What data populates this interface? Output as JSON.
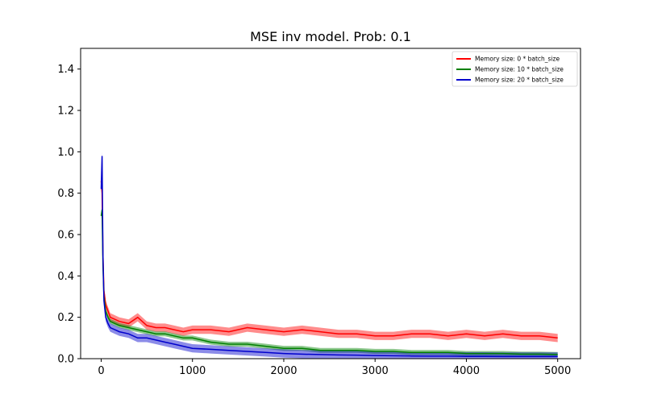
{
  "chart_data": {
    "type": "line",
    "title": "MSE inv model. Prob: 0.1",
    "xlabel": "",
    "ylabel": "",
    "xlim": [
      -225,
      5250
    ],
    "ylim": [
      0,
      1.5
    ],
    "x_ticks": [
      0,
      1000,
      2000,
      3000,
      4000,
      5000
    ],
    "x_tick_labels": [
      "0",
      "1000",
      "2000",
      "3000",
      "4000",
      "5000"
    ],
    "y_ticks": [
      0.0,
      0.2,
      0.4,
      0.6,
      0.8,
      1.0,
      1.2,
      1.4
    ],
    "y_tick_labels": [
      "0.0",
      "0.2",
      "0.4",
      "0.6",
      "0.8",
      "1.0",
      "1.2",
      "1.4"
    ],
    "grid": false,
    "legend_position": "top-right",
    "series": [
      {
        "name": "Memory size: 0 * batch_size",
        "color": "#ff0000",
        "x": [
          0,
          10,
          20,
          30,
          50,
          75,
          100,
          150,
          200,
          300,
          400,
          500,
          600,
          700,
          800,
          900,
          1000,
          1200,
          1400,
          1600,
          1800,
          2000,
          2200,
          2400,
          2600,
          2800,
          3000,
          3200,
          3400,
          3600,
          3800,
          4000,
          4200,
          4400,
          4600,
          4800,
          5000
        ],
        "y": [
          0.86,
          0.8,
          0.5,
          0.33,
          0.26,
          0.23,
          0.2,
          0.19,
          0.18,
          0.17,
          0.2,
          0.16,
          0.15,
          0.15,
          0.14,
          0.13,
          0.14,
          0.14,
          0.13,
          0.15,
          0.14,
          0.13,
          0.14,
          0.13,
          0.12,
          0.12,
          0.11,
          0.11,
          0.12,
          0.12,
          0.11,
          0.12,
          0.11,
          0.12,
          0.11,
          0.11,
          0.1
        ],
        "band": 0.02
      },
      {
        "name": "Memory size: 10 * batch_size",
        "color": "#008000",
        "x": [
          0,
          10,
          20,
          30,
          50,
          75,
          100,
          150,
          200,
          300,
          400,
          500,
          600,
          700,
          800,
          900,
          1000,
          1200,
          1400,
          1600,
          1800,
          2000,
          2200,
          2400,
          2600,
          2800,
          3000,
          3200,
          3400,
          3600,
          3800,
          4000,
          4200,
          4400,
          4600,
          4800,
          5000
        ],
        "y": [
          0.69,
          0.72,
          0.45,
          0.3,
          0.23,
          0.2,
          0.18,
          0.17,
          0.16,
          0.15,
          0.14,
          0.13,
          0.12,
          0.12,
          0.11,
          0.1,
          0.1,
          0.08,
          0.07,
          0.07,
          0.06,
          0.05,
          0.05,
          0.04,
          0.04,
          0.04,
          0.035,
          0.035,
          0.03,
          0.03,
          0.03,
          0.025,
          0.025,
          0.025,
          0.022,
          0.022,
          0.02
        ],
        "band": 0.012
      },
      {
        "name": "Memory size: 20 * batch_size",
        "color": "#0000cc",
        "x": [
          0,
          10,
          20,
          30,
          50,
          75,
          100,
          150,
          200,
          300,
          400,
          500,
          600,
          700,
          800,
          900,
          1000,
          1200,
          1400,
          1600,
          1800,
          2000,
          2200,
          2400,
          2600,
          2800,
          3000,
          3200,
          3400,
          3600,
          3800,
          4000,
          4200,
          4400,
          4600,
          4800,
          5000
        ],
        "y": [
          0.82,
          0.98,
          0.5,
          0.28,
          0.2,
          0.17,
          0.15,
          0.14,
          0.13,
          0.12,
          0.1,
          0.1,
          0.09,
          0.08,
          0.07,
          0.06,
          0.05,
          0.045,
          0.04,
          0.035,
          0.03,
          0.025,
          0.022,
          0.02,
          0.018,
          0.017,
          0.015,
          0.014,
          0.013,
          0.012,
          0.012,
          0.011,
          0.011,
          0.01,
          0.01,
          0.01,
          0.01
        ],
        "band": 0.02
      }
    ]
  }
}
